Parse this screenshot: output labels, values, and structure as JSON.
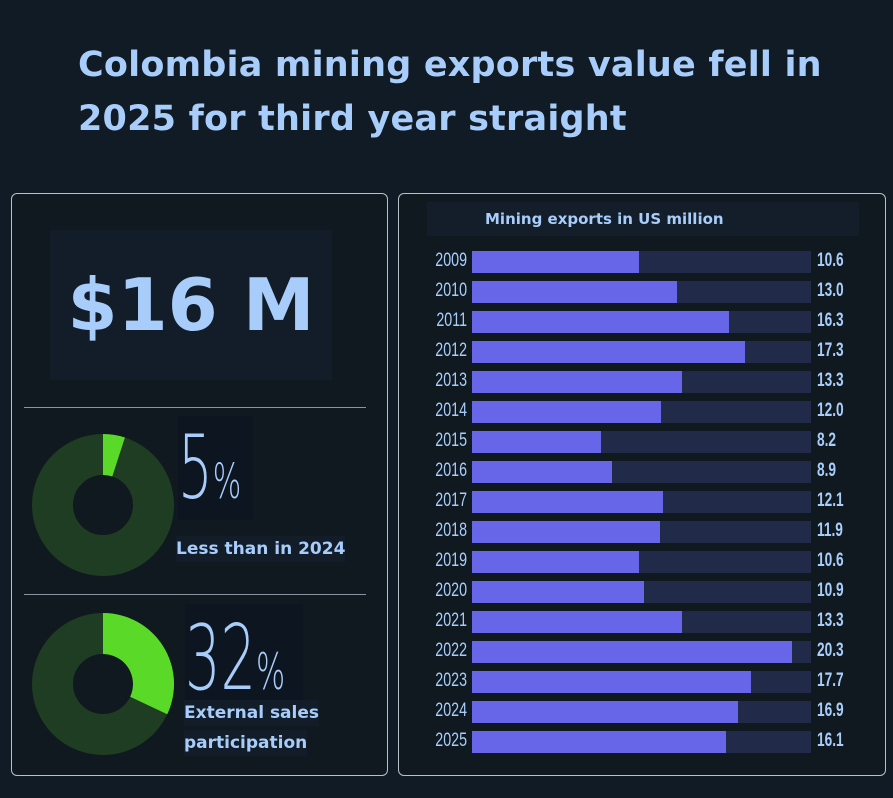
{
  "title": "Colombia mining exports value fell in 2025 for third year straight",
  "kpi": {
    "value": "$16 M"
  },
  "stat1": {
    "value": "5",
    "unit": "%",
    "label": "Less than in 2024",
    "fraction": 0.05
  },
  "stat2": {
    "value": "32",
    "unit": "%",
    "label_line1": "External sales",
    "label_line2": "participation",
    "fraction": 0.32
  },
  "colors": {
    "bar": "#6866e8",
    "track": "#222a4a",
    "donut_fill": "#5bd929",
    "donut_bg": "#1f3d22",
    "text": "#a8cdfb"
  },
  "chart_data": {
    "type": "bar",
    "orientation": "horizontal",
    "title": "Mining exports in US million",
    "categories": [
      "2009",
      "2010",
      "2011",
      "2012",
      "2013",
      "2014",
      "2015",
      "2016",
      "2017",
      "2018",
      "2019",
      "2020",
      "2021",
      "2022",
      "2023",
      "2024",
      "2025"
    ],
    "values": [
      10.6,
      13.0,
      16.3,
      17.3,
      13.3,
      12.0,
      8.2,
      8.9,
      12.1,
      11.9,
      10.6,
      10.9,
      13.3,
      20.3,
      17.7,
      16.9,
      16.1
    ],
    "value_labels": [
      "10.6",
      "13.0",
      "16.3",
      "17.3",
      "13.3",
      "12.0",
      "8.2",
      "8.9",
      "12.1",
      "11.9",
      "10.6",
      "10.9",
      "13.3",
      "20.3",
      "17.7",
      "16.9",
      "16.1"
    ],
    "xlim": [
      0,
      21.5
    ]
  }
}
